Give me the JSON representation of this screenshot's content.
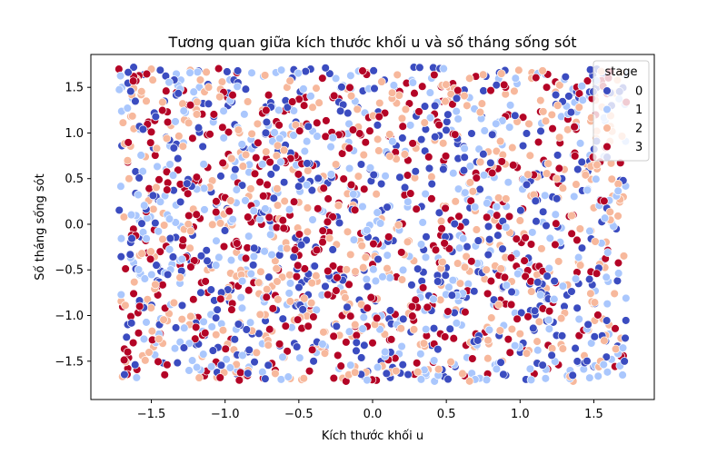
{
  "chart_data": {
    "type": "scatter",
    "title": "Tương quan giữa kích thước khối u và số tháng sống sót",
    "xlabel": "Kích thước khối u",
    "ylabel": "Số tháng sống sót",
    "xlim": [
      -1.91,
      1.91
    ],
    "ylim": [
      -1.92,
      1.86
    ],
    "xticks": [
      -1.5,
      -1.0,
      -0.5,
      0.0,
      0.5,
      1.0,
      1.5
    ],
    "yticks": [
      -1.5,
      -1.0,
      -0.5,
      0.0,
      0.5,
      1.0,
      1.5
    ],
    "xtick_labels": [
      "−1.5",
      "−1.0",
      "−0.5",
      "0.0",
      "0.5",
      "1.0",
      "1.5"
    ],
    "ytick_labels": [
      "−1.5",
      "−1.0",
      "−0.5",
      "0.0",
      "0.5",
      "1.0",
      "1.5"
    ],
    "grid": false,
    "legend": {
      "title": "stage",
      "position": "top-right",
      "entries": [
        {
          "label": "0",
          "color": "#3b4cc0"
        },
        {
          "label": "1",
          "color": "#aac7fd"
        },
        {
          "label": "2",
          "color": "#f7b89c"
        },
        {
          "label": "3",
          "color": "#b40426"
        }
      ]
    },
    "point_count_per_series": 500,
    "point_range": {
      "x": [
        -1.72,
        1.72
      ],
      "y": [
        -1.72,
        1.72
      ]
    },
    "series": [
      {
        "name": "0",
        "color": "#3b4cc0",
        "points": [
          [
            -1.62,
            1.72
          ],
          [
            -1.55,
            1.64
          ],
          [
            -1.18,
            1.68
          ],
          [
            -0.86,
            1.48
          ],
          [
            -0.42,
            1.7
          ],
          [
            0.08,
            1.58
          ],
          [
            0.28,
            1.72
          ],
          [
            0.86,
            1.66
          ],
          [
            1.52,
            1.7
          ],
          [
            -1.48,
            1.22
          ],
          [
            -0.98,
            1.3
          ],
          [
            -0.52,
            1.12
          ],
          [
            -0.1,
            1.28
          ],
          [
            0.36,
            1.04
          ],
          [
            0.74,
            1.18
          ],
          [
            1.14,
            1.02
          ],
          [
            1.62,
            1.3
          ],
          [
            -1.7,
            0.86
          ],
          [
            -1.32,
            0.72
          ],
          [
            -0.86,
            0.82
          ],
          [
            -0.38,
            0.66
          ],
          [
            0.16,
            0.86
          ],
          [
            0.58,
            0.72
          ],
          [
            1.02,
            0.86
          ],
          [
            1.46,
            0.58
          ],
          [
            -1.5,
            0.3
          ],
          [
            -1.06,
            0.22
          ],
          [
            -0.6,
            0.46
          ],
          [
            -0.24,
            0.08
          ],
          [
            0.22,
            0.34
          ],
          [
            0.66,
            0.18
          ],
          [
            1.22,
            0.3
          ],
          [
            1.68,
            0.48
          ],
          [
            -1.64,
            -0.2
          ],
          [
            -1.22,
            -0.12
          ],
          [
            -0.78,
            -0.28
          ],
          [
            -0.32,
            -0.06
          ],
          [
            0.14,
            -0.18
          ],
          [
            0.54,
            -0.3
          ],
          [
            0.94,
            -0.1
          ],
          [
            1.42,
            -0.26
          ],
          [
            -1.46,
            -0.62
          ],
          [
            -0.96,
            -0.72
          ],
          [
            -0.48,
            -0.64
          ],
          [
            0.02,
            -0.84
          ],
          [
            0.44,
            -0.56
          ],
          [
            0.88,
            -0.7
          ],
          [
            1.3,
            -0.9
          ],
          [
            1.66,
            -0.62
          ],
          [
            -1.66,
            -1.1
          ],
          [
            -1.2,
            -1.02
          ],
          [
            -0.72,
            -1.24
          ],
          [
            -0.26,
            -1.1
          ],
          [
            0.26,
            -1.18
          ],
          [
            0.7,
            -1.34
          ],
          [
            1.18,
            -1.06
          ],
          [
            1.58,
            -1.28
          ],
          [
            -1.42,
            -1.52
          ],
          [
            -0.92,
            -1.64
          ],
          [
            -0.4,
            -1.5
          ],
          [
            0.12,
            -1.68
          ],
          [
            0.56,
            -1.56
          ],
          [
            1.04,
            -1.7
          ],
          [
            1.5,
            -1.56
          ]
        ]
      },
      {
        "name": "1",
        "color": "#aac7fd",
        "points": [
          [
            -1.7,
            1.5
          ],
          [
            -1.3,
            1.58
          ],
          [
            -0.74,
            1.62
          ],
          [
            -0.2,
            1.52
          ],
          [
            0.4,
            1.6
          ],
          [
            0.98,
            1.54
          ],
          [
            1.36,
            1.44
          ],
          [
            -1.58,
            1.04
          ],
          [
            -1.08,
            1.12
          ],
          [
            -0.66,
            0.98
          ],
          [
            -0.16,
            1.1
          ],
          [
            0.3,
            1.22
          ],
          [
            0.82,
            0.98
          ],
          [
            1.28,
            1.18
          ],
          [
            -1.4,
            0.6
          ],
          [
            -0.94,
            0.52
          ],
          [
            -0.46,
            0.8
          ],
          [
            0.02,
            0.54
          ],
          [
            0.48,
            0.62
          ],
          [
            0.92,
            0.46
          ],
          [
            1.36,
            0.76
          ],
          [
            -1.58,
            0.04
          ],
          [
            -1.14,
            0.16
          ],
          [
            -0.68,
            -0.04
          ],
          [
            -0.12,
            0.22
          ],
          [
            0.34,
            0.02
          ],
          [
            0.8,
            0.12
          ],
          [
            1.28,
            -0.04
          ],
          [
            -1.36,
            -0.44
          ],
          [
            -0.88,
            -0.36
          ],
          [
            -0.4,
            -0.46
          ],
          [
            0.1,
            -0.34
          ],
          [
            0.62,
            -0.46
          ],
          [
            1.06,
            -0.42
          ],
          [
            1.56,
            -0.4
          ],
          [
            -1.54,
            -0.86
          ],
          [
            -1.06,
            -0.94
          ],
          [
            -0.58,
            -0.88
          ],
          [
            -0.06,
            -1.02
          ],
          [
            0.36,
            -0.92
          ],
          [
            0.82,
            -0.88
          ],
          [
            1.4,
            -1.04
          ],
          [
            -1.34,
            -1.36
          ],
          [
            -0.82,
            -1.4
          ],
          [
            -0.32,
            -1.34
          ],
          [
            0.18,
            -1.42
          ],
          [
            0.64,
            -1.46
          ],
          [
            1.12,
            -1.38
          ],
          [
            1.62,
            -1.48
          ],
          [
            -1.6,
            -1.68
          ],
          [
            -0.62,
            -1.7
          ],
          [
            0.42,
            -1.72
          ],
          [
            1.32,
            -1.66
          ]
        ]
      },
      {
        "name": "2",
        "color": "#f7b89c",
        "points": [
          [
            -1.5,
            1.7
          ],
          [
            -1.02,
            1.56
          ],
          [
            -0.58,
            1.5
          ],
          [
            -0.04,
            1.66
          ],
          [
            0.52,
            1.5
          ],
          [
            1.08,
            1.66
          ],
          [
            1.66,
            1.58
          ],
          [
            -1.64,
            1.18
          ],
          [
            -1.2,
            1.26
          ],
          [
            -0.78,
            1.1
          ],
          [
            -0.28,
            1.0
          ],
          [
            0.2,
            1.16
          ],
          [
            0.64,
            1.3
          ],
          [
            1.06,
            1.1
          ],
          [
            1.52,
            1.02
          ],
          [
            -1.54,
            0.74
          ],
          [
            -1.0,
            0.64
          ],
          [
            -0.54,
            0.6
          ],
          [
            -0.06,
            0.76
          ],
          [
            0.4,
            0.52
          ],
          [
            0.84,
            0.8
          ],
          [
            1.3,
            0.6
          ],
          [
            1.7,
            0.3
          ],
          [
            -1.42,
            0.12
          ],
          [
            -0.98,
            -0.02
          ],
          [
            -0.5,
            0.24
          ],
          [
            0.06,
            0.06
          ],
          [
            0.48,
            0.2
          ],
          [
            1.0,
            0.04
          ],
          [
            1.5,
            0.18
          ],
          [
            -1.58,
            -0.34
          ],
          [
            -1.12,
            -0.5
          ],
          [
            -0.66,
            -0.4
          ],
          [
            -0.2,
            -0.54
          ],
          [
            0.28,
            -0.4
          ],
          [
            0.76,
            -0.6
          ],
          [
            1.2,
            -0.52
          ],
          [
            1.64,
            -0.76
          ],
          [
            -1.38,
            -0.98
          ],
          [
            -0.9,
            -1.08
          ],
          [
            -0.42,
            -0.94
          ],
          [
            0.06,
            -1.12
          ],
          [
            0.5,
            -1.0
          ],
          [
            1.0,
            -1.2
          ],
          [
            1.46,
            -1.14
          ],
          [
            -1.56,
            -1.44
          ],
          [
            -1.08,
            -1.54
          ],
          [
            -0.6,
            -1.46
          ],
          [
            -0.12,
            -1.56
          ],
          [
            0.34,
            -1.64
          ],
          [
            0.88,
            -1.5
          ],
          [
            1.36,
            -1.72
          ]
        ]
      },
      {
        "name": "3",
        "color": "#b40426",
        "points": [
          [
            -1.72,
            1.7
          ],
          [
            -1.4,
            1.46
          ],
          [
            -0.92,
            1.66
          ],
          [
            -0.34,
            1.6
          ],
          [
            0.18,
            1.46
          ],
          [
            0.7,
            1.62
          ],
          [
            1.24,
            1.56
          ],
          [
            1.6,
            1.46
          ],
          [
            -1.52,
            1.12
          ],
          [
            -1.12,
            0.98
          ],
          [
            -0.6,
            1.24
          ],
          [
            -0.08,
            0.98
          ],
          [
            0.44,
            1.12
          ],
          [
            0.92,
            1.2
          ],
          [
            1.38,
            1.04
          ],
          [
            -1.66,
            0.68
          ],
          [
            -1.18,
            0.48
          ],
          [
            -0.72,
            0.72
          ],
          [
            -0.26,
            0.52
          ],
          [
            0.24,
            0.7
          ],
          [
            0.7,
            0.56
          ],
          [
            1.16,
            0.7
          ],
          [
            1.58,
            0.84
          ],
          [
            -1.48,
            -0.06
          ],
          [
            -1.02,
            0.3
          ],
          [
            -0.56,
            0.1
          ],
          [
            -0.08,
            -0.1
          ],
          [
            0.4,
            0.28
          ],
          [
            0.86,
            -0.02
          ],
          [
            1.36,
            0.1
          ],
          [
            -1.44,
            -0.3
          ],
          [
            -0.94,
            -0.22
          ],
          [
            -0.5,
            -0.34
          ],
          [
            0.0,
            -0.44
          ],
          [
            0.5,
            -0.24
          ],
          [
            0.96,
            -0.34
          ],
          [
            1.48,
            -0.52
          ],
          [
            -1.62,
            -0.76
          ],
          [
            -1.16,
            -0.64
          ],
          [
            -0.66,
            -0.78
          ],
          [
            -0.16,
            -0.66
          ],
          [
            0.32,
            -0.8
          ],
          [
            0.78,
            -0.76
          ],
          [
            1.24,
            -0.64
          ],
          [
            -1.44,
            -1.2
          ],
          [
            -0.96,
            -1.26
          ],
          [
            -0.48,
            -1.14
          ],
          [
            0.0,
            -1.3
          ],
          [
            0.46,
            -1.2
          ],
          [
            0.92,
            -1.26
          ],
          [
            1.4,
            -1.22
          ],
          [
            -1.66,
            -1.58
          ],
          [
            -1.14,
            -1.66
          ],
          [
            -0.66,
            -1.6
          ],
          [
            -0.18,
            -1.72
          ],
          [
            0.3,
            -1.52
          ],
          [
            0.78,
            -1.64
          ],
          [
            1.26,
            -1.54
          ],
          [
            1.7,
            -1.44
          ]
        ]
      }
    ]
  }
}
